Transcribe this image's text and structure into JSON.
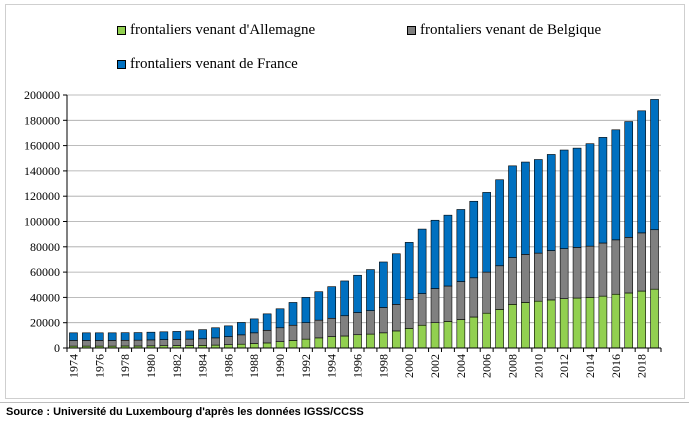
{
  "chart_data": {
    "type": "bar",
    "stacked": true,
    "title": "",
    "xlabel": "",
    "ylabel": "",
    "ylim": [
      0,
      200000
    ],
    "yticks": [
      0,
      20000,
      40000,
      60000,
      80000,
      100000,
      120000,
      140000,
      160000,
      180000,
      200000
    ],
    "ytick_labels": [
      "0",
      "20000",
      "40000",
      "60000",
      "80000",
      "100000",
      "120000",
      "140000",
      "160000",
      "180000",
      "200000"
    ],
    "grid": true,
    "legend_position": "top",
    "categories": [
      "1974",
      "1975",
      "1976",
      "1977",
      "1978",
      "1979",
      "1980",
      "1981",
      "1982",
      "1983",
      "1984",
      "1985",
      "1986",
      "1987",
      "1988",
      "1989",
      "1990",
      "1991",
      "1992",
      "1993",
      "1994",
      "1995",
      "1996",
      "1997",
      "1998",
      "1999",
      "2000",
      "2001",
      "2002",
      "2003",
      "2004",
      "2005",
      "2006",
      "2007",
      "2008",
      "2009",
      "2010",
      "2011",
      "2012",
      "2013",
      "2014",
      "2015",
      "2016",
      "2017",
      "2018",
      "2019"
    ],
    "xtick_labels": [
      "1974",
      "1976",
      "1978",
      "1980",
      "1982",
      "1984",
      "1986",
      "1988",
      "1990",
      "1992",
      "1994",
      "1996",
      "1998",
      "2000",
      "2002",
      "2004",
      "2006",
      "2008",
      "2010",
      "2012",
      "2014",
      "2016",
      "2018"
    ],
    "series": [
      {
        "name": "frontaliers venant d'Allemagne",
        "color": "#92d050",
        "values": [
          1500,
          1500,
          1500,
          1500,
          1600,
          1600,
          1700,
          1800,
          1900,
          2000,
          2100,
          2300,
          2600,
          3000,
          3500,
          4000,
          5000,
          6000,
          7000,
          8000,
          9000,
          9500,
          10500,
          11000,
          12000,
          13500,
          15500,
          18000,
          20000,
          21000,
          22500,
          24500,
          27500,
          30500,
          34500,
          36000,
          37000,
          38000,
          39000,
          39500,
          40000,
          41000,
          42500,
          43500,
          45000,
          46500
        ]
      },
      {
        "name": "frontaliers venant de Belgique",
        "color": "#808080",
        "values": [
          4500,
          4500,
          4500,
          4500,
          4500,
          4600,
          4700,
          4800,
          4900,
          5000,
          5200,
          5700,
          6400,
          7400,
          8500,
          10000,
          11000,
          12000,
          13000,
          14000,
          14500,
          16000,
          17500,
          18500,
          20000,
          21000,
          23000,
          25000,
          27000,
          28000,
          30000,
          31000,
          32500,
          34500,
          37000,
          38000,
          38000,
          39000,
          39500,
          40000,
          40500,
          42000,
          43000,
          44000,
          46000,
          47000
        ]
      },
      {
        "name": "frontaliers venant de France",
        "color": "#0070c0",
        "values": [
          6000,
          6000,
          6000,
          6000,
          6000,
          6000,
          6100,
          6200,
          6300,
          6500,
          7200,
          8000,
          8500,
          9800,
          11000,
          13000,
          15000,
          18000,
          20000,
          22500,
          25000,
          27500,
          29500,
          32500,
          36000,
          40000,
          45000,
          51000,
          54000,
          56000,
          57000,
          60500,
          63000,
          68000,
          72500,
          73000,
          74000,
          76000,
          78000,
          78500,
          81000,
          83500,
          87000,
          91500,
          96500,
          103000
        ]
      }
    ]
  },
  "source": "Source : Université du Luxembourg d'après les données IGSS/CCSS"
}
